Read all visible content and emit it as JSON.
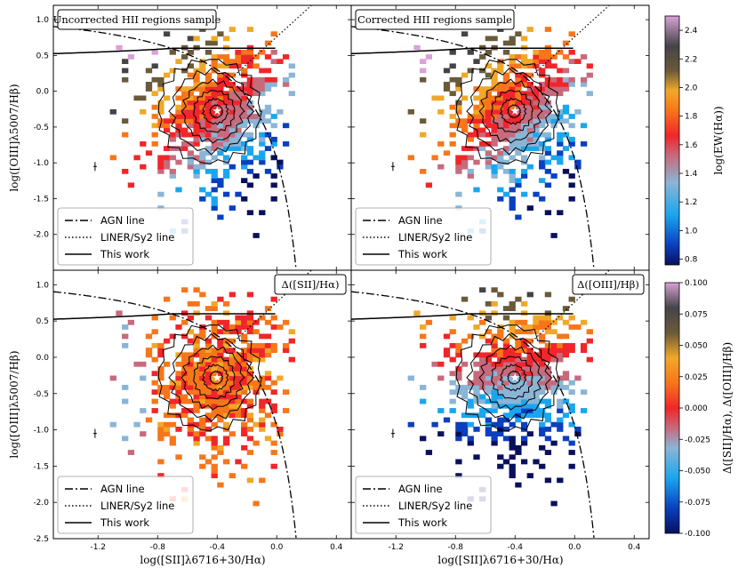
{
  "figure": {
    "ylabel": "log([OIII]λ5007/Hβ)",
    "xlabel": "log([SII]λ6716+30/Hα)"
  },
  "chart_data": [
    {
      "type": "heatmap",
      "panel": "top-left",
      "title": "Uncorrected HII regions sample",
      "xlim": [
        -1.5,
        0.5
      ],
      "ylim": [
        -2.5,
        1.2
      ],
      "xticks": [
        "-1.2",
        "-0.8",
        "-0.4",
        "0.0",
        "0.4"
      ],
      "yticks": [
        "1.0",
        "0.5",
        "0.0",
        "-0.5",
        "-1.0",
        "-1.5",
        "-2.0",
        "-2.5"
      ],
      "color_quantity": "log(EW(Hα))",
      "density_peak": [
        -0.4,
        -0.28
      ],
      "legend_placement": "lower-left",
      "legend": [
        "AGN line",
        "LINER/Sy2 line",
        "This work"
      ]
    },
    {
      "type": "heatmap",
      "panel": "top-right",
      "title": "Corrected HII regions sample",
      "xlim": [
        -1.5,
        0.5
      ],
      "ylim": [
        -2.5,
        1.2
      ],
      "color_quantity": "log(EW(Hα))",
      "density_peak": [
        -0.4,
        -0.28
      ],
      "legend_placement": "lower-left",
      "legend": [
        "AGN line",
        "LINER/Sy2 line",
        "This work"
      ]
    },
    {
      "type": "heatmap",
      "panel": "bottom-left",
      "title": "Δ([SII]/Hα)",
      "xlim": [
        -1.5,
        0.5
      ],
      "ylim": [
        -2.5,
        1.2
      ],
      "color_quantity": "Δ([SII]/Hα)",
      "density_peak": [
        -0.4,
        -0.28
      ],
      "legend_placement": "lower-left",
      "legend": [
        "AGN line",
        "LINER/Sy2 line",
        "This work"
      ]
    },
    {
      "type": "heatmap",
      "panel": "bottom-right",
      "title": "Δ([OIII]/Hβ)",
      "xlim": [
        -1.5,
        0.5
      ],
      "ylim": [
        -2.5,
        1.2
      ],
      "color_quantity": "Δ([OIII]/Hβ)",
      "density_peak": [
        -0.4,
        -0.28
      ],
      "legend_placement": "lower-left",
      "legend": [
        "AGN line",
        "LINER/Sy2 line",
        "This work"
      ]
    }
  ],
  "colorbars": [
    {
      "label": "log(EW(Hα))",
      "range": [
        0.76,
        2.5
      ],
      "ticks": [
        "2.4",
        "2.2",
        "2.0",
        "1.8",
        "1.6",
        "1.4",
        "1.2",
        "1.0",
        "0.8"
      ]
    },
    {
      "label": "Δ([SII]/Hα), Δ([OIII]/Hβ)",
      "range": [
        -0.1,
        0.1
      ],
      "ticks": [
        "0.100",
        "0.075",
        "0.050",
        "0.025",
        "0.000",
        "-0.025",
        "-0.050",
        "-0.075",
        "-0.100"
      ]
    }
  ],
  "colors": {
    "colormap": [
      "#08105e",
      "#0a3fbf",
      "#1aa6ee",
      "#8bb5d6",
      "#c76a7c",
      "#f0262a",
      "#f7761a",
      "#f0a82a",
      "#6a5a3a",
      "#444448",
      "#d9a2d6"
    ]
  }
}
